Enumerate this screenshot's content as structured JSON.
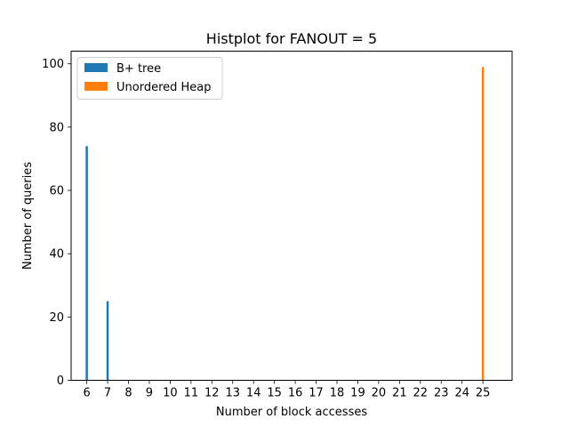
{
  "chart_data": {
    "type": "bar",
    "title": "Histplot for FANOUT = 5",
    "xlabel": "Number of block accesses",
    "ylabel": "Number of queries",
    "x_ticks": [
      6,
      7,
      8,
      9,
      10,
      11,
      12,
      13,
      14,
      15,
      16,
      17,
      18,
      19,
      20,
      21,
      22,
      23,
      24,
      25
    ],
    "x_range": [
      5.25,
      26.4
    ],
    "ylim": [
      0,
      104
    ],
    "y_ticks": [
      0,
      20,
      40,
      60,
      80,
      100
    ],
    "grid": false,
    "legend_position": "top-left",
    "series": [
      {
        "name": "B+ tree",
        "color": "#1f77b4",
        "points": [
          {
            "x": 6,
            "y": 74
          },
          {
            "x": 7,
            "y": 25
          }
        ]
      },
      {
        "name": "Unordered Heap",
        "color": "#ff7f0e",
        "points": [
          {
            "x": 25,
            "y": 99
          }
        ]
      }
    ]
  }
}
